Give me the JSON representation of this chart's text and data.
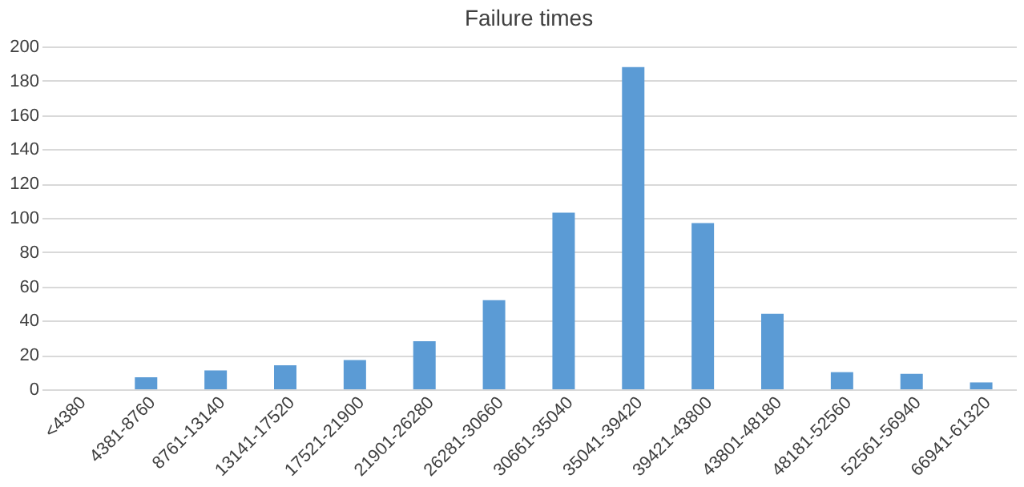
{
  "chart_data": {
    "type": "bar",
    "title": "Failure times",
    "categories": [
      "<4380",
      "4381-8760",
      "8761-13140",
      "13141-17520",
      "17521-21900",
      "21901-26280",
      "26281-30660",
      "30661-35040",
      "35041-39420",
      "39421-43800",
      "43801-48180",
      "48181-52560",
      "52561-56940",
      "66941-61320"
    ],
    "values": [
      0,
      7,
      11,
      14,
      17,
      28,
      52,
      103,
      188,
      97,
      44,
      10,
      9,
      4
    ],
    "color": "#5b9bd5",
    "ylim": [
      0,
      200
    ],
    "yticks": [
      0,
      20,
      40,
      60,
      80,
      100,
      120,
      140,
      160,
      180,
      200
    ],
    "grid": "y"
  }
}
